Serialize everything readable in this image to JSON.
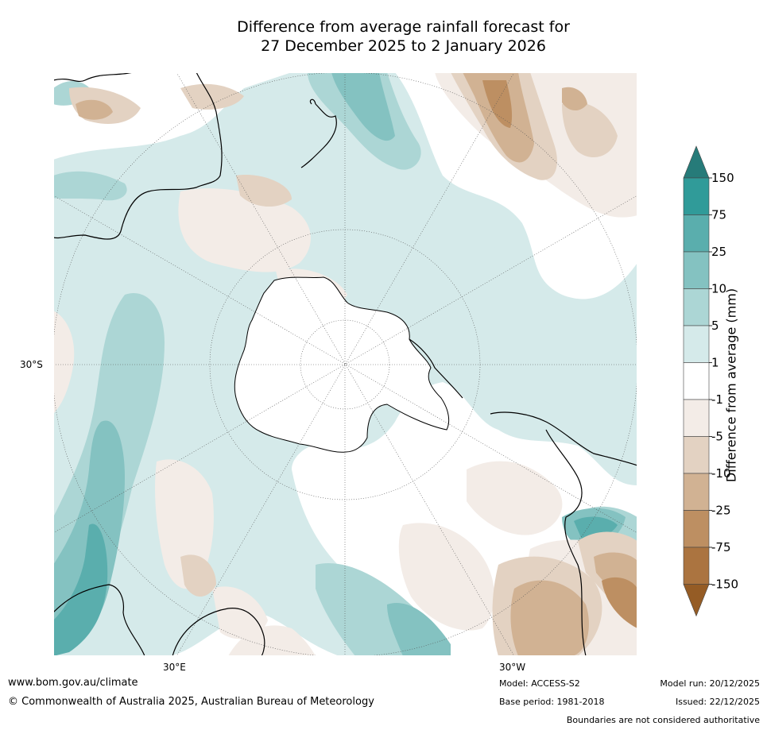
{
  "title": {
    "line1": "Difference from average rainfall forecast for",
    "line2": "27 December 2025 to 2 January 2026"
  },
  "map": {
    "projection": "south-polar stereographic",
    "lat_label": "30°S",
    "lon_labels": [
      "30°E",
      "30°W"
    ]
  },
  "legend": {
    "title": "Difference from average (mm)",
    "ticks": [
      "150",
      "75",
      "25",
      "10",
      "5",
      "1",
      "-1",
      "-5",
      "-10",
      "-25",
      "-75",
      "-150"
    ],
    "colors": {
      "above_150": "#267b79",
      "b75_150": "#309b99",
      "b25_75": "#5aaead",
      "b10_25": "#84c2c1",
      "b5_10": "#acd6d5",
      "b1_5": "#d5eaea",
      "neutral": "#ffffff",
      "bm5_m1": "#f3ece7",
      "bm10_m5": "#e3d2c2",
      "bm25_m10": "#d1b293",
      "bm75_m25": "#bd8f62",
      "bm150_m75": "#ab7440",
      "below_m150": "#955c25"
    }
  },
  "footer": {
    "url": "www.bom.gov.au/climate",
    "copyright": "© Commonwealth of Australia 2025, Australian Bureau of Meteorology",
    "model": "Model: ACCESS-S2",
    "base_period": "Base period: 1981-2018",
    "model_run": "Model run: 20/12/2025",
    "issued": "Issued: 22/12/2025",
    "disclaimer": "Boundaries are not considered authoritative"
  }
}
